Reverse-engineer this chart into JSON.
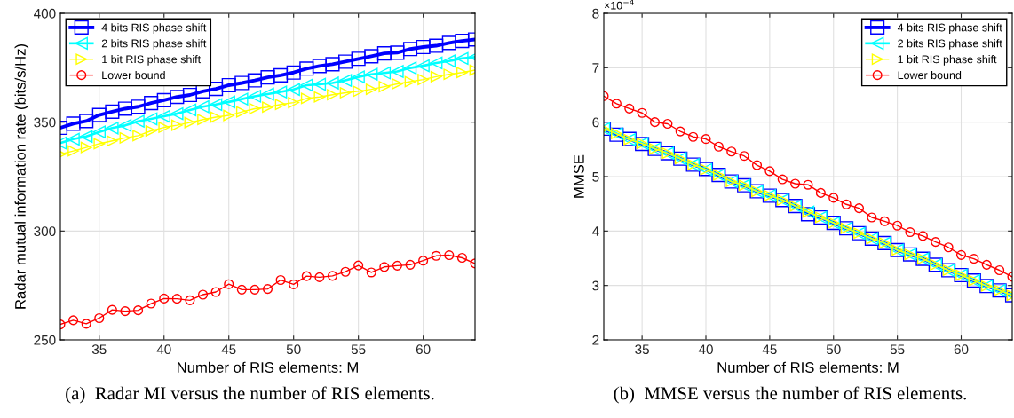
{
  "chart_data": [
    {
      "type": "line",
      "xlabel": "Number of RIS elements: M",
      "ylabel": "Radar mutual information rate (bits/s/Hz)",
      "annotations": [
        "(a)  Radar MI versus the number of RIS elements."
      ],
      "x": [
        32,
        33,
        34,
        35,
        36,
        37,
        38,
        39,
        40,
        41,
        42,
        43,
        44,
        45,
        46,
        47,
        48,
        49,
        50,
        51,
        52,
        53,
        54,
        55,
        56,
        57,
        58,
        59,
        60,
        61,
        62,
        63,
        64
      ],
      "series": [
        {
          "name": "4 bits RIS phase shift",
          "color": "#0000ff",
          "marker": "square",
          "values": [
            347.4,
            349.3,
            350.5,
            353.3,
            354.8,
            356.2,
            357.1,
            358.8,
            360.1,
            361.6,
            362.5,
            364.2,
            365.3,
            367.0,
            368.0,
            369.2,
            370.6,
            371.5,
            372.8,
            374.6,
            375.8,
            376.6,
            377.8,
            379.1,
            380.3,
            381.6,
            381.9,
            383.6,
            384.5,
            385.1,
            386.4,
            387.3,
            388.0
          ]
        },
        {
          "name": "2 bits RIS phase shift",
          "color": "#00ffff",
          "marker": "triangle_left",
          "values": [
            340.4,
            342.2,
            343.4,
            345.5,
            347.3,
            348.5,
            350.4,
            351.5,
            352.7,
            353.9,
            355.6,
            357.1,
            358.1,
            359.3,
            360.6,
            361.9,
            362.9,
            363.9,
            365.0,
            367.0,
            367.4,
            368.0,
            369.2,
            370.8,
            372.0,
            372.6,
            373.3,
            374.9,
            375.9,
            377.2,
            378.1,
            379.3,
            379.9
          ]
        },
        {
          "name": "1 bit RIS phase shift",
          "color": "#ffff00",
          "marker": "triangle_right",
          "values": [
            335.3,
            336.8,
            338.4,
            340.1,
            341.4,
            342.8,
            343.8,
            346.0,
            347.6,
            348.6,
            349.8,
            351.2,
            352.3,
            353.1,
            354.7,
            356.2,
            356.9,
            358.1,
            359.0,
            360.9,
            361.6,
            362.6,
            363.5,
            364.2,
            365.1,
            366.3,
            367.6,
            368.6,
            369.6,
            370.9,
            372.0,
            372.8,
            373.9
          ]
        },
        {
          "name": "Lower bound",
          "color": "#ff0000",
          "marker": "circle",
          "values": [
            257.1,
            259.0,
            257.4,
            260.0,
            263.8,
            263.2,
            263.6,
            266.7,
            269.0,
            268.9,
            268.2,
            270.8,
            272.0,
            275.6,
            273.1,
            273.1,
            273.4,
            277.5,
            275.5,
            279.3,
            278.8,
            279.4,
            281.3,
            284.2,
            281.0,
            283.5,
            284.1,
            284.5,
            286.4,
            288.6,
            288.9,
            287.7,
            285.1
          ]
        }
      ],
      "xlim": [
        32,
        64
      ],
      "xticks": [
        35,
        40,
        45,
        50,
        55,
        60
      ],
      "ylim": [
        250,
        400
      ],
      "yticks": [
        250,
        300,
        350,
        400
      ],
      "grid": true,
      "legend": "top left"
    },
    {
      "type": "line",
      "xlabel": "Number of RIS elements: M",
      "ylabel": "MMSE",
      "annotations": [
        "×10$^{−4}$",
        "(b)  MMSE versus the number of RIS elements."
      ],
      "x": [
        32,
        33,
        34,
        35,
        36,
        37,
        38,
        39,
        40,
        41,
        42,
        43,
        44,
        45,
        46,
        47,
        48,
        49,
        50,
        51,
        52,
        53,
        54,
        55,
        56,
        57,
        58,
        59,
        60,
        61,
        62,
        63,
        64
      ],
      "series": [
        {
          "name": "4 bits RIS phase shift",
          "color": "#0000ff",
          "marker": "square",
          "values": [
            5.88,
            5.77,
            5.69,
            5.6,
            5.51,
            5.43,
            5.33,
            5.22,
            5.14,
            5.03,
            4.91,
            4.84,
            4.73,
            4.65,
            4.57,
            4.46,
            4.31,
            4.25,
            4.15,
            4.05,
            3.96,
            3.86,
            3.78,
            3.65,
            3.57,
            3.49,
            3.38,
            3.28,
            3.19,
            3.09,
            2.99,
            2.91,
            2.82
          ]
        },
        {
          "name": "2 bits RIS phase shift",
          "color": "#00ffff",
          "marker": "triangle_left",
          "values": [
            5.88,
            5.79,
            5.68,
            5.61,
            5.51,
            5.43,
            5.33,
            5.22,
            5.13,
            5.03,
            4.91,
            4.84,
            4.73,
            4.65,
            4.57,
            4.46,
            4.35,
            4.25,
            4.15,
            4.05,
            3.96,
            3.86,
            3.78,
            3.65,
            3.57,
            3.49,
            3.38,
            3.28,
            3.19,
            3.09,
            2.99,
            2.91,
            2.82
          ]
        },
        {
          "name": "1 bit RIS phase shift",
          "color": "#ffff00",
          "marker": "triangle_right",
          "values": [
            5.88,
            5.79,
            5.68,
            5.61,
            5.51,
            5.43,
            5.33,
            5.22,
            5.13,
            5.03,
            4.91,
            4.84,
            4.73,
            4.65,
            4.57,
            4.46,
            4.35,
            4.25,
            4.15,
            4.05,
            3.96,
            3.86,
            3.78,
            3.65,
            3.57,
            3.49,
            3.38,
            3.28,
            3.19,
            3.09,
            2.99,
            2.91,
            2.82
          ]
        },
        {
          "name": "Lower bound",
          "color": "#ff0000",
          "marker": "circle",
          "values": [
            6.48,
            6.34,
            6.25,
            6.17,
            6.0,
            5.97,
            5.83,
            5.73,
            5.69,
            5.55,
            5.46,
            5.38,
            5.21,
            5.1,
            4.95,
            4.87,
            4.85,
            4.7,
            4.61,
            4.49,
            4.42,
            4.25,
            4.18,
            4.1,
            3.98,
            3.91,
            3.8,
            3.7,
            3.56,
            3.49,
            3.38,
            3.28,
            3.16
          ]
        }
      ],
      "xlim": [
        32,
        64
      ],
      "xticks": [
        35,
        40,
        45,
        50,
        55,
        60
      ],
      "ylim": [
        2,
        8
      ],
      "yticks": [
        2,
        3,
        4,
        5,
        6,
        7,
        8
      ],
      "grid": true,
      "legend": "top right"
    }
  ]
}
